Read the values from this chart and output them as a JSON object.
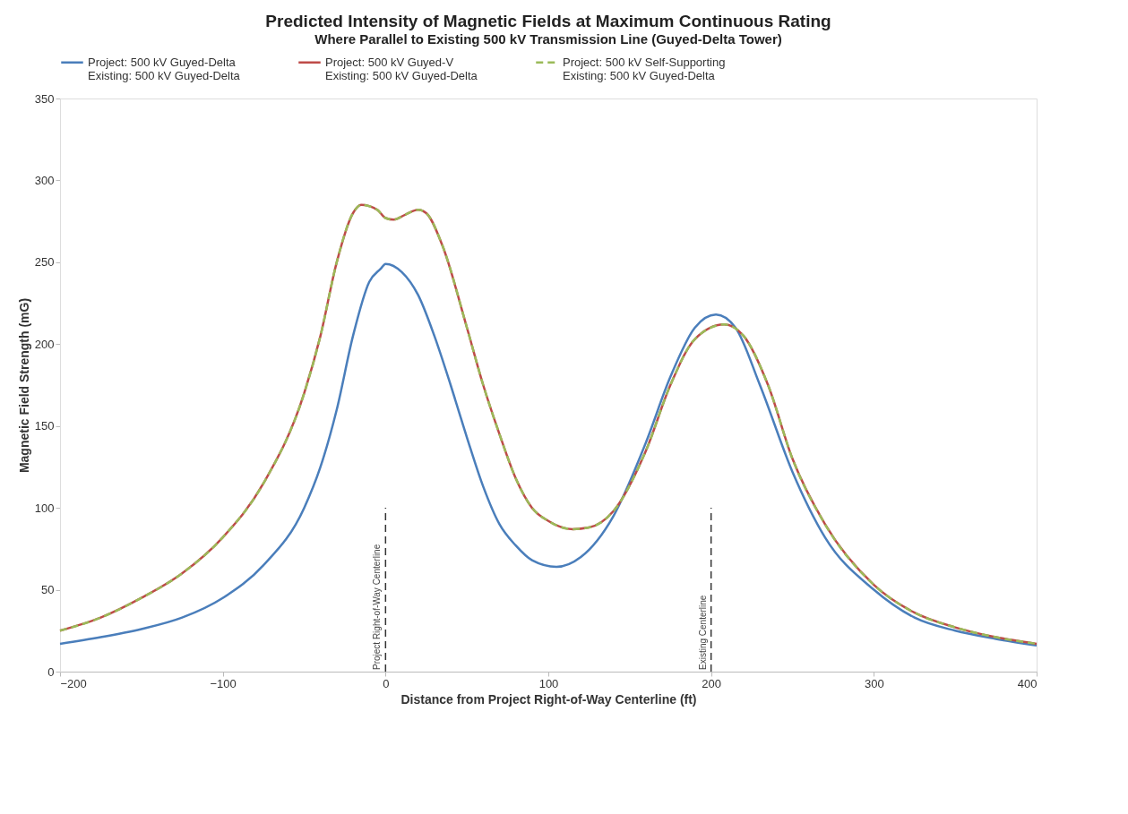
{
  "chart_data": {
    "type": "line",
    "title": "Predicted Intensity of Magnetic Fields at Maximum Continuous Rating",
    "subtitle": "Where Parallel to Existing 500 kV Transmission Line (Guyed-Delta Tower)",
    "xlabel": "Distance from Project Right-of-Way Centerline (ft)",
    "ylabel": "Magnetic Field Strength (mG)",
    "xlim": [
      -200,
      400
    ],
    "xticks": [
      -200,
      -100,
      0,
      100,
      200,
      300,
      400
    ],
    "ylim": [
      0,
      350
    ],
    "yticks": [
      0,
      50,
      100,
      150,
      200,
      250,
      300,
      350
    ],
    "grid": false,
    "legend": "top",
    "marker": "none",
    "ref_lines": [
      {
        "axis": "x",
        "value": 0,
        "label": "Project Right-of-Way Centerline",
        "line_style": "dashed",
        "color": "#333333"
      },
      {
        "axis": "x",
        "value": 200,
        "label": "Existing Centerline",
        "line_style": "dashed",
        "color": "#333333"
      }
    ],
    "series": [
      {
        "name": "Project: 500 kV Guyed-Delta\nExisting: 500 kV Guyed-Delta",
        "color": "#4a7ebb",
        "line_style": "solid",
        "x": [
          -200,
          -175,
          -150,
          -125,
          -100,
          -75,
          -50,
          -40,
          -30,
          -20,
          -10,
          -3,
          0,
          10,
          20,
          30,
          40,
          50,
          60,
          70,
          80,
          90,
          105,
          120,
          140,
          160,
          175,
          190,
          203,
          215,
          230,
          250,
          270,
          300,
          325,
          350,
          375,
          400
        ],
        "values": [
          17,
          21,
          26,
          33,
          45,
          65,
          100,
          125,
          160,
          205,
          238,
          246,
          249,
          244,
          230,
          205,
          175,
          143,
          113,
          90,
          77,
          68,
          64,
          70,
          95,
          140,
          180,
          210,
          218,
          210,
          175,
          122,
          82,
          50,
          33,
          25,
          20,
          16
        ]
      },
      {
        "name": "Project: 500 kV Guyed-V\nExisting: 500 kV Guyed-Delta",
        "color": "#be4b48",
        "line_style": "solid",
        "x": [
          -200,
          -175,
          -150,
          -125,
          -100,
          -75,
          -50,
          -40,
          -30,
          -20,
          -15,
          -5,
          0,
          5,
          12,
          20,
          25,
          35,
          50,
          60,
          70,
          80,
          90,
          100,
          115,
          125,
          140,
          160,
          175,
          190,
          208,
          220,
          235,
          250,
          270,
          300,
          325,
          350,
          375,
          400
        ],
        "values": [
          25,
          33,
          45,
          60,
          82,
          115,
          170,
          205,
          250,
          280,
          285,
          282,
          277,
          276,
          279,
          282,
          280,
          260,
          210,
          175,
          145,
          118,
          100,
          92,
          87,
          88,
          98,
          135,
          175,
          203,
          212,
          205,
          175,
          130,
          90,
          53,
          36,
          27,
          21,
          17
        ]
      },
      {
        "name": "Project: 500 kV Self-Supporting\nExisting: 500 kV Guyed-Delta",
        "color": "#9bbb59",
        "line_style": "dashed",
        "x": [
          -200,
          -175,
          -150,
          -125,
          -100,
          -75,
          -50,
          -40,
          -30,
          -20,
          -15,
          -5,
          0,
          5,
          12,
          20,
          25,
          35,
          50,
          60,
          70,
          80,
          90,
          100,
          115,
          125,
          140,
          160,
          175,
          190,
          208,
          220,
          235,
          250,
          270,
          300,
          325,
          350,
          375,
          400
        ],
        "values": [
          25,
          33,
          45,
          60,
          82,
          115,
          170,
          205,
          250,
          280,
          285,
          282,
          277,
          276,
          279,
          282,
          280,
          260,
          210,
          175,
          145,
          118,
          100,
          92,
          87,
          88,
          98,
          135,
          175,
          203,
          212,
          205,
          175,
          130,
          90,
          53,
          36,
          27,
          21,
          17
        ]
      }
    ]
  }
}
